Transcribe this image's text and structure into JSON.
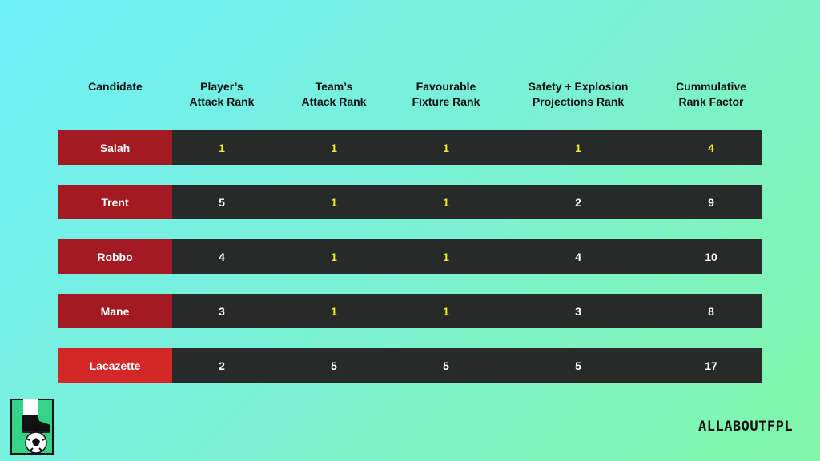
{
  "headers": [
    "Candidate",
    "Player’s\nAttack Rank",
    "Team’s\nAttack Rank",
    "Favourable\nFixture Rank",
    "Safety + Explosion\nProjections Rank",
    "Cummulative\nRank Factor"
  ],
  "rows": [
    {
      "name": "Salah",
      "values": [
        "1",
        "1",
        "1",
        "1",
        "4"
      ],
      "highlight": [
        true,
        true,
        true,
        true,
        true
      ],
      "name_color": "#a31a22"
    },
    {
      "name": "Trent",
      "values": [
        "5",
        "1",
        "1",
        "2",
        "9"
      ],
      "highlight": [
        false,
        true,
        true,
        false,
        false
      ],
      "name_color": "#a31a22"
    },
    {
      "name": "Robbo",
      "values": [
        "4",
        "1",
        "1",
        "4",
        "10"
      ],
      "highlight": [
        false,
        true,
        true,
        false,
        false
      ],
      "name_color": "#a31a22"
    },
    {
      "name": "Mane",
      "values": [
        "3",
        "1",
        "1",
        "3",
        "8"
      ],
      "highlight": [
        false,
        true,
        true,
        false,
        false
      ],
      "name_color": "#a31a22"
    },
    {
      "name": "Lacazette",
      "values": [
        "2",
        "5",
        "5",
        "5",
        "17"
      ],
      "highlight": [
        false,
        false,
        false,
        false,
        false
      ],
      "name_color": "#d42828"
    }
  ],
  "colors": {
    "highlight": "#f0f020",
    "normal": "#ffffff",
    "row_bg": "#272a28"
  },
  "brand": "ALLABOUTFPL",
  "logo_icon": "boot-and-football-icon"
}
